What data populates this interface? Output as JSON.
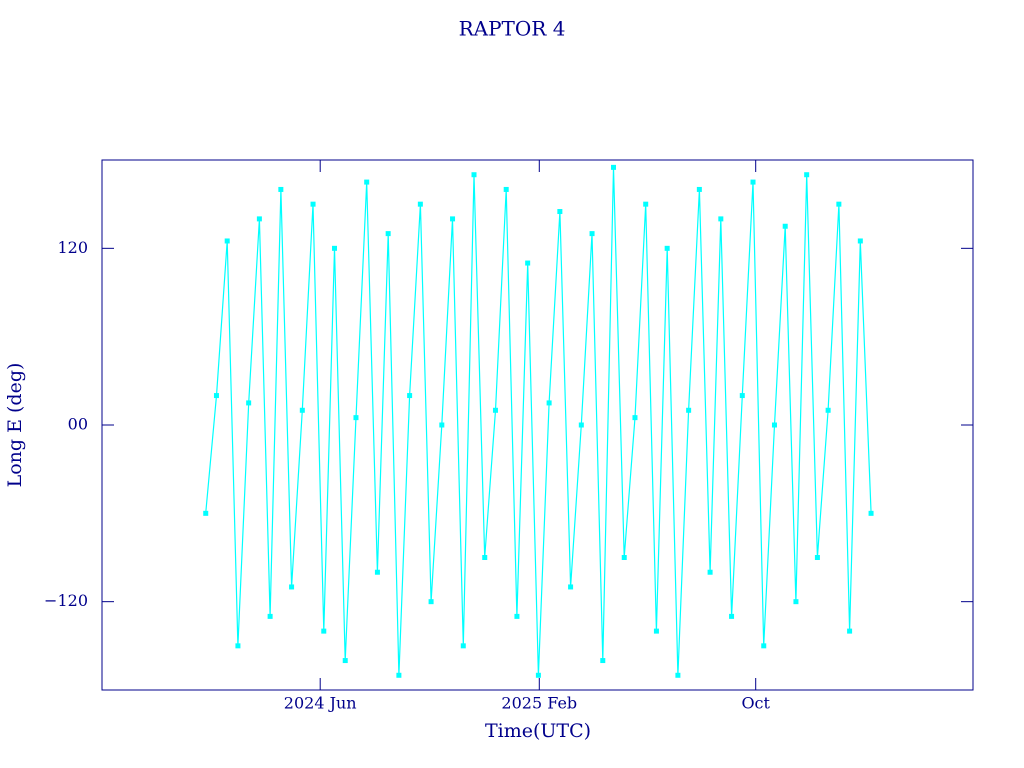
{
  "chart_data": {
    "type": "line",
    "title": "RAPTOR 4",
    "xlabel": "Time(UTC)",
    "ylabel": "Long E (deg)",
    "xlim": [
      "2023-10",
      "2026-06"
    ],
    "xticks": [
      {
        "value": "2024-06",
        "label": "2024 Jun"
      },
      {
        "value": "2025-02",
        "label": "2025 Feb"
      },
      {
        "value": "2025-10",
        "label": "Oct"
      }
    ],
    "ylim": [
      -180,
      180
    ],
    "yticks": [
      {
        "value": -120,
        "label": "−120"
      },
      {
        "value": 0,
        "label": "00"
      },
      120
    ],
    "x": [
      "2024-01-25",
      "2024-02-06",
      "2024-02-18",
      "2024-03-01",
      "2024-03-13",
      "2024-03-25",
      "2024-04-06",
      "2024-04-18",
      "2024-04-30",
      "2024-05-12",
      "2024-05-24",
      "2024-06-05",
      "2024-06-17",
      "2024-06-29",
      "2024-07-11",
      "2024-07-23",
      "2024-08-04",
      "2024-08-16",
      "2024-08-28",
      "2024-09-09",
      "2024-09-21",
      "2024-10-03",
      "2024-10-15",
      "2024-10-27",
      "2024-11-08",
      "2024-11-20",
      "2024-12-02",
      "2024-12-14",
      "2024-12-26",
      "2025-01-07",
      "2025-01-19",
      "2025-01-31",
      "2025-02-12",
      "2025-02-24",
      "2025-03-08",
      "2025-03-20",
      "2025-04-01",
      "2025-04-13",
      "2025-04-25",
      "2025-05-07",
      "2025-05-19",
      "2025-05-31",
      "2025-06-12",
      "2025-06-24",
      "2025-07-06",
      "2025-07-18",
      "2025-07-30",
      "2025-08-11",
      "2025-08-23",
      "2025-09-04",
      "2025-09-16",
      "2025-09-28",
      "2025-10-10",
      "2025-10-22",
      "2025-11-03",
      "2025-11-15",
      "2025-11-27",
      "2025-12-09",
      "2025-12-21",
      "2026-01-02",
      "2026-01-14",
      "2026-01-26",
      "2026-02-07"
    ],
    "series": [
      {
        "name": "RAPTOR 4",
        "color": "#00ffff",
        "values": [
          -60,
          20,
          125,
          -150,
          15,
          140,
          -130,
          160,
          -110,
          10,
          150,
          -140,
          120,
          -160,
          5,
          165,
          -100,
          130,
          -170,
          20,
          150,
          -120,
          0,
          140,
          -150,
          170,
          -90,
          10,
          160,
          -130,
          110,
          -170,
          15,
          145,
          -110,
          0,
          130,
          -160,
          175,
          -90,
          5,
          150,
          -140,
          120,
          -170,
          10,
          160,
          -100,
          140,
          -130,
          20,
          165,
          -150,
          0,
          135,
          -120,
          170,
          -90,
          10,
          150,
          -140,
          125,
          -60
        ]
      }
    ],
    "axis_color": "#00008b"
  }
}
